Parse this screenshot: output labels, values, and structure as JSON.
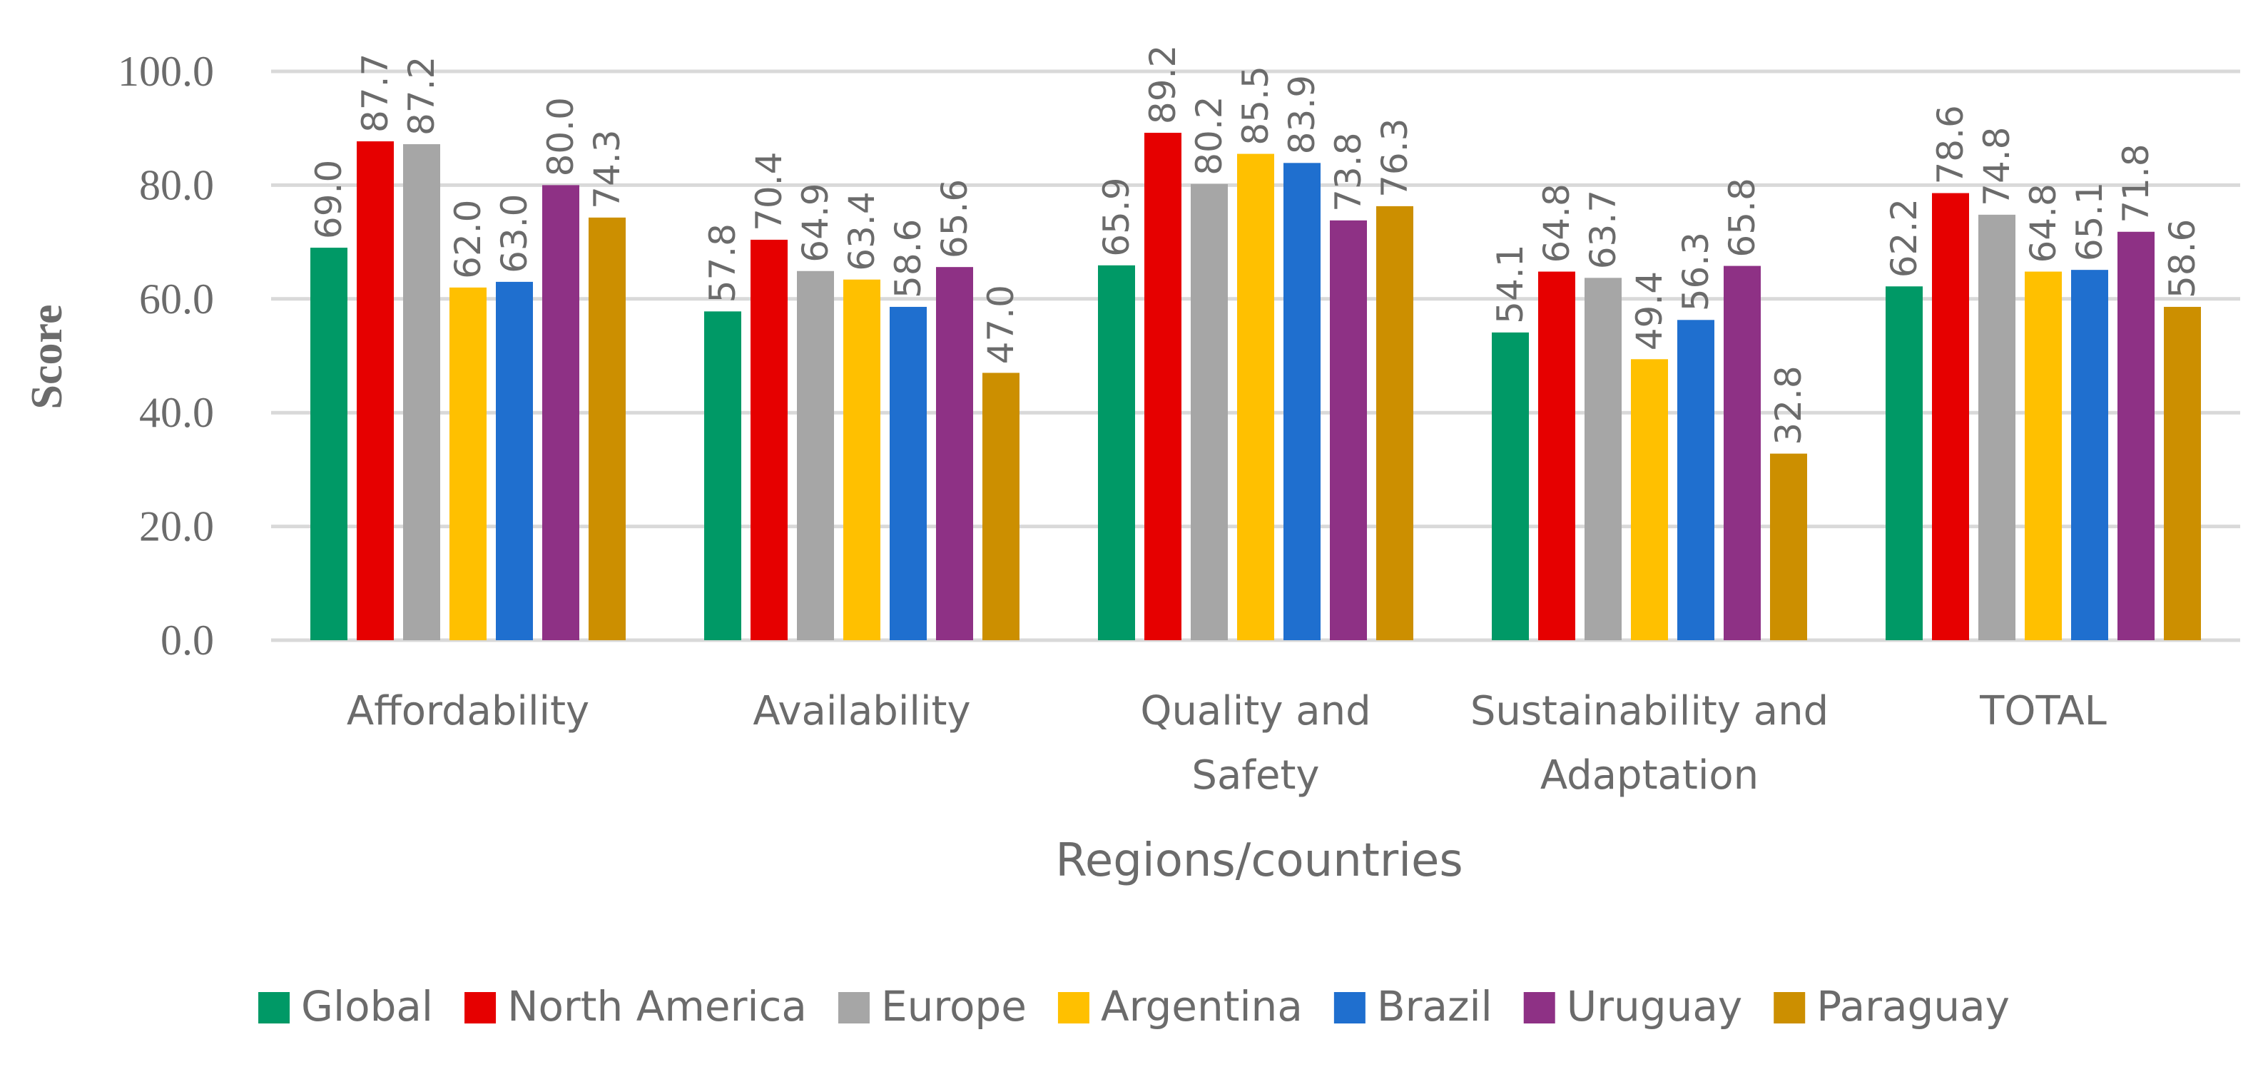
{
  "chart_data": {
    "type": "bar",
    "title": "",
    "xlabel": "Regions/countries",
    "ylabel": "Score",
    "ylim": [
      0,
      100
    ],
    "yticks": [
      "0.0",
      "20.0",
      "40.0",
      "60.0",
      "80.0",
      "100.0"
    ],
    "grid": true,
    "legend_position": "bottom",
    "categories": [
      [
        "Affordability"
      ],
      [
        "Availability"
      ],
      [
        "Quality and",
        "Safety"
      ],
      [
        "Sustainability and",
        "Adaptation"
      ],
      [
        "TOTAL"
      ]
    ],
    "series": [
      {
        "name": "Global",
        "color": "#009966",
        "values": [
          69.0,
          57.8,
          65.9,
          54.1,
          62.2
        ],
        "labels": [
          "69.0",
          "57.8",
          "65.9",
          "54.1",
          "62.2"
        ]
      },
      {
        "name": "North America",
        "color": "#e60000",
        "values": [
          87.7,
          70.4,
          89.2,
          64.8,
          78.6
        ],
        "labels": [
          "87.7",
          "70.4",
          "89.2",
          "64.8",
          "78.6"
        ]
      },
      {
        "name": "Europe",
        "color": "#a6a6a6",
        "values": [
          87.2,
          64.9,
          80.2,
          63.7,
          74.8
        ],
        "labels": [
          "87.2",
          "64.9",
          "80.2",
          "63.7",
          "74.8"
        ]
      },
      {
        "name": "Argentina",
        "color": "#ffc000",
        "values": [
          62.0,
          63.4,
          85.5,
          49.4,
          64.8
        ],
        "labels": [
          "62.0",
          "63.4",
          "85.5",
          "49.4",
          "64.8"
        ]
      },
      {
        "name": "Brazil",
        "color": "#1f6fcf",
        "values": [
          63.0,
          58.6,
          83.9,
          56.3,
          65.1
        ],
        "labels": [
          "63.0",
          "58.6",
          "83.9",
          "56.3",
          "65.1"
        ]
      },
      {
        "name": "Uruguay",
        "color": "#8e3185",
        "values": [
          80.0,
          65.6,
          73.8,
          65.8,
          71.8
        ],
        "labels": [
          "80.0",
          "65.6",
          "73.8",
          "65.8",
          "71.8"
        ]
      },
      {
        "name": "Paraguay",
        "color": "#cc8f00",
        "values": [
          74.3,
          47.0,
          76.3,
          32.8,
          58.6
        ],
        "labels": [
          "74.3",
          "47.0",
          "76.3",
          "32.8",
          "58.6"
        ]
      }
    ]
  }
}
